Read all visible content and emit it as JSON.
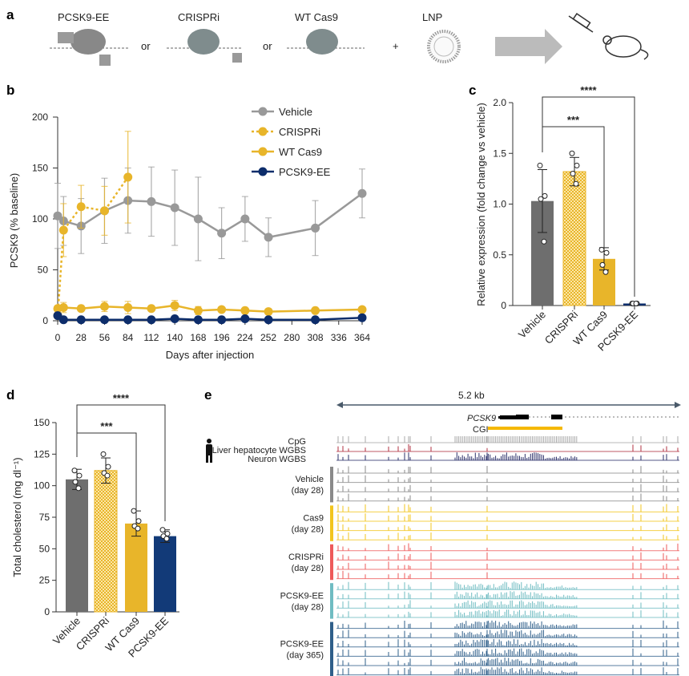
{
  "panel_labels": [
    "a",
    "b",
    "c",
    "d",
    "e"
  ],
  "panel_a": {
    "items": [
      "PCSK9-EE",
      "CRISPRi",
      "WT Cas9",
      "LNP"
    ],
    "connectors": [
      "or",
      "or",
      "+"
    ]
  },
  "colors": {
    "Vehicle": "#999999",
    "CRISPRi": "#e8b52a",
    "WT Cas9": "#e8b52a",
    "PCSK9-EE": "#0d2d6b",
    "bar_vehicle": "#6e6e6e",
    "bar_ee": "#123a78"
  },
  "chart_data": [
    {
      "panel": "b",
      "type": "line",
      "xlabel": "Days after injection",
      "ylabel": "PCSK9 (% baseline)",
      "xlim": [
        0,
        364
      ],
      "ylim": [
        0,
        200
      ],
      "xticks": [
        0,
        28,
        56,
        84,
        112,
        140,
        168,
        196,
        224,
        252,
        280,
        308,
        336,
        364
      ],
      "yticks": [
        0,
        50,
        100,
        150,
        200
      ],
      "legend": "top-right",
      "series": [
        {
          "name": "Vehicle",
          "style": "solid",
          "x": [
            0,
            7,
            28,
            56,
            84,
            112,
            140,
            168,
            196,
            224,
            252,
            308,
            364
          ],
          "y": [
            103,
            98,
            93,
            108,
            118,
            117,
            111,
            100,
            86,
            100,
            82,
            91,
            125
          ],
          "err": [
            32,
            24,
            27,
            32,
            32,
            34,
            37,
            41,
            25,
            22,
            19,
            27,
            24
          ]
        },
        {
          "name": "CRISPRi",
          "style": "dotted",
          "x": [
            0,
            7,
            28,
            56,
            84
          ],
          "y": [
            5,
            89,
            112,
            108,
            141
          ],
          "err": [
            0,
            26,
            21,
            24,
            45
          ]
        },
        {
          "name": "WT Cas9",
          "style": "solid",
          "x": [
            0,
            7,
            28,
            56,
            84,
            112,
            140,
            168,
            196,
            224,
            252,
            308,
            364
          ],
          "y": [
            12,
            13,
            12,
            14,
            13,
            12,
            15,
            10,
            11,
            10,
            9,
            10,
            11
          ],
          "err": [
            1,
            5,
            2,
            5,
            6,
            2,
            5,
            4,
            2,
            2,
            1,
            2,
            2
          ]
        },
        {
          "name": "PCSK9-EE",
          "style": "solid",
          "x": [
            0,
            7,
            28,
            56,
            84,
            112,
            140,
            168,
            196,
            224,
            252,
            308,
            364
          ],
          "y": [
            5,
            1,
            1,
            1,
            1,
            1,
            2,
            1,
            1,
            2,
            1,
            1,
            3
          ],
          "err": [
            0,
            0,
            0,
            0,
            0,
            0,
            0,
            0,
            0,
            0,
            0,
            0,
            0
          ]
        }
      ]
    },
    {
      "panel": "c",
      "type": "bar",
      "ylabel": "Relative expression (fold change vs vehicle)",
      "categories": [
        "Vehicle",
        "CRISPRi",
        "WT Cas9",
        "PCSK9-EE"
      ],
      "values": [
        1.03,
        1.32,
        0.46,
        0.02
      ],
      "err": [
        0.31,
        0.14,
        0.11,
        0.01
      ],
      "points": [
        [
          1.38,
          1.08,
          1.05,
          0.63
        ],
        [
          1.5,
          1.38,
          1.3,
          1.2
        ],
        [
          0.55,
          0.52,
          0.4,
          0.33
        ],
        [
          0.02,
          0.02,
          0.02,
          0.02
        ]
      ],
      "ylim": [
        0,
        2.0
      ],
      "yticks": [
        "0",
        "0.5",
        "1.0",
        "1.5",
        "2.0"
      ],
      "significance": [
        {
          "from": 0,
          "to": 2,
          "label": "***"
        },
        {
          "from": 0,
          "to": 3,
          "label": "****"
        }
      ]
    },
    {
      "panel": "d",
      "type": "bar",
      "ylabel": "Total cholesterol (mg dl⁻¹)",
      "categories": [
        "Vehicle",
        "CRISPRi",
        "WT Cas9",
        "PCSK9-EE"
      ],
      "values": [
        105,
        112,
        70,
        60
      ],
      "err": [
        8,
        10,
        10,
        5
      ],
      "points": [
        [
          112,
          108,
          103,
          98
        ],
        [
          125,
          115,
          110,
          108
        ],
        [
          80,
          72,
          68,
          66
        ],
        [
          65,
          62,
          60,
          58
        ]
      ],
      "ylim": [
        0,
        150
      ],
      "yticks": [
        "0",
        "25",
        "50",
        "75",
        "100",
        "125",
        "150"
      ],
      "significance": [
        {
          "from": 0,
          "to": 2,
          "label": "***"
        },
        {
          "from": 0,
          "to": 3,
          "label": "****"
        }
      ]
    }
  ],
  "panel_e": {
    "scale_label": "5.2 kb",
    "gene": "PCSK9",
    "cgi_label": "CGI",
    "reference_tracks": [
      "CpG",
      "Liver hepatocyte WGBS",
      "Neuron WGBS"
    ],
    "groups": [
      {
        "label1": "Vehicle",
        "label2": "(day 28)",
        "color": "#8a8a8a",
        "rows": 4,
        "signal": "low"
      },
      {
        "label1": "Cas9",
        "label2": "(day 28)",
        "color": "#f2c51d",
        "rows": 4,
        "signal": "low"
      },
      {
        "label1": "CRISPRi",
        "label2": "(day 28)",
        "color": "#ee5a5a",
        "rows": 4,
        "signal": "low"
      },
      {
        "label1": "PCSK9-EE",
        "label2": "(day 28)",
        "color": "#6fbcc2",
        "rows": 4,
        "signal": "high"
      },
      {
        "label1": "PCSK9-EE",
        "label2": "(day 365)",
        "color": "#2f5f8a",
        "rows": 6,
        "signal": "high"
      }
    ]
  }
}
